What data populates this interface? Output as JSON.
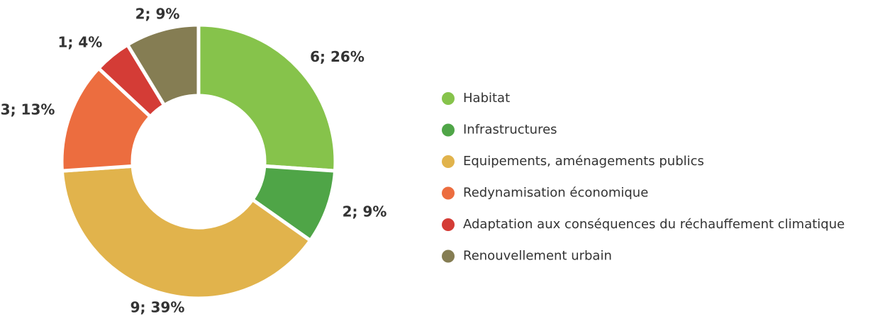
{
  "chart_data": {
    "type": "donut",
    "categories": [
      "Habitat",
      "Infrastructures",
      "Equipements, aménagements publics",
      "Redynamisation économique",
      "Adaptation aux conséquences du réchauffement climatique",
      "Renouvellement urbain"
    ],
    "values": [
      6,
      2,
      9,
      3,
      1,
      2
    ],
    "value_labels": [
      "6; 26%",
      "2; 9%",
      "9; 39%",
      "3; 13%",
      "1; 4%",
      "2; 9%"
    ],
    "colors": [
      "#86c34b",
      "#4fa547",
      "#e1b34c",
      "#ec6d3f",
      "#d43c36",
      "#857d53"
    ],
    "legend": "right"
  }
}
